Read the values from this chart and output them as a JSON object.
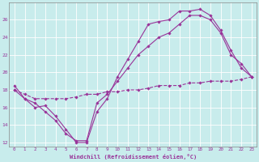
{
  "xlabel": "Windchill (Refroidissement éolien,°C)",
  "bg_color": "#c8ecec",
  "line_color": "#993399",
  "grid_color": "#ffffff",
  "xlim": [
    -0.5,
    23.5
  ],
  "ylim": [
    11.5,
    28.0
  ],
  "yticks": [
    12,
    14,
    16,
    18,
    20,
    22,
    24,
    26
  ],
  "xticks": [
    0,
    1,
    2,
    3,
    4,
    5,
    6,
    7,
    8,
    9,
    10,
    11,
    12,
    13,
    14,
    15,
    16,
    17,
    18,
    19,
    20,
    21,
    22,
    23
  ],
  "series1_x": [
    0,
    1,
    2,
    3,
    4,
    5,
    6,
    7,
    8,
    9,
    10,
    11,
    12,
    13,
    14,
    15,
    16,
    17,
    18,
    19,
    20,
    21,
    22,
    23
  ],
  "series1_y": [
    18.5,
    17.0,
    16.0,
    16.2,
    15.0,
    13.5,
    12.0,
    12.0,
    15.5,
    17.0,
    19.5,
    21.5,
    23.5,
    25.5,
    25.8,
    26.0,
    27.0,
    27.0,
    27.2,
    26.5,
    24.8,
    22.5,
    20.5,
    19.5
  ],
  "series2_x": [
    0,
    1,
    2,
    3,
    4,
    5,
    6,
    7,
    8,
    9,
    10,
    11,
    12,
    13,
    14,
    15,
    16,
    17,
    18,
    19,
    20,
    21,
    22,
    23
  ],
  "series2_y": [
    18.0,
    17.0,
    16.5,
    15.5,
    14.5,
    13.0,
    12.2,
    12.2,
    16.5,
    17.5,
    19.0,
    20.5,
    22.0,
    23.0,
    24.0,
    24.5,
    25.5,
    26.5,
    26.5,
    26.0,
    24.5,
    22.0,
    21.0,
    19.5
  ],
  "series3_x": [
    0,
    1,
    2,
    3,
    4,
    5,
    6,
    7,
    8,
    9,
    10,
    11,
    12,
    13,
    14,
    15,
    16,
    17,
    18,
    19,
    20,
    21,
    22,
    23
  ],
  "series3_y": [
    18.0,
    17.5,
    17.0,
    17.0,
    17.0,
    17.0,
    17.2,
    17.5,
    17.5,
    17.8,
    17.8,
    18.0,
    18.0,
    18.2,
    18.5,
    18.5,
    18.5,
    18.8,
    18.8,
    19.0,
    19.0,
    19.0,
    19.2,
    19.5
  ]
}
